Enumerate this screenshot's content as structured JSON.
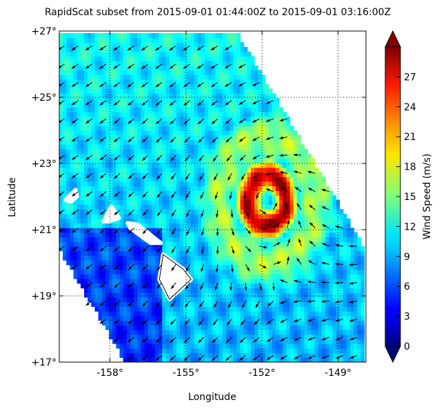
{
  "chart_data": {
    "type": "heatmap",
    "title": "RapidScat subset from 2015-09-01 01:44:00Z to 2015-09-01 03:16:00Z",
    "xlabel": "Longitude",
    "ylabel": "Latitude",
    "xlim": [
      -160.0,
      -147.9
    ],
    "ylim": [
      17,
      27
    ],
    "x_ticks": [
      {
        "value": -158,
        "label": "-158°"
      },
      {
        "value": -155,
        "label": "-155°"
      },
      {
        "value": -152,
        "label": "-152°"
      },
      {
        "value": -149,
        "label": "-149°"
      }
    ],
    "y_ticks": [
      {
        "value": 17,
        "label": "+17°"
      },
      {
        "value": 19,
        "label": "+19°"
      },
      {
        "value": 21,
        "label": "+21°"
      },
      {
        "value": 23,
        "label": "+23°"
      },
      {
        "value": 25,
        "label": "+25°"
      },
      {
        "value": 27,
        "label": "+27°"
      }
    ],
    "grid": true,
    "colorbar": {
      "label": "Wind Speed (m/s)",
      "range": [
        0,
        30
      ],
      "colormap": "jet",
      "extend": "both",
      "ticks": [
        {
          "value": 0,
          "label": "0"
        },
        {
          "value": 3,
          "label": "3"
        },
        {
          "value": 6,
          "label": "6"
        },
        {
          "value": 9,
          "label": "9"
        },
        {
          "value": 12,
          "label": "12"
        },
        {
          "value": 15,
          "label": "15"
        },
        {
          "value": 18,
          "label": "18"
        },
        {
          "value": 21,
          "label": "21"
        },
        {
          "value": 24,
          "label": "24"
        },
        {
          "value": 27,
          "label": "27"
        }
      ]
    },
    "swath_polygon": [
      [
        -160.0,
        27.0
      ],
      [
        -153.0,
        27.0
      ],
      [
        -147.9,
        20.4
      ],
      [
        -147.9,
        17.0
      ],
      [
        -157.4,
        17.0
      ],
      [
        -160.0,
        20.4
      ]
    ],
    "cyclone_center": {
      "lon": -151.8,
      "lat": 21.9
    },
    "peak_wind": 29,
    "islands": [
      {
        "name": "Kauai",
        "outline": [
          [
            -159.75,
            21.9
          ],
          [
            -159.35,
            22.2
          ],
          [
            -159.3,
            22.0
          ],
          [
            -159.55,
            21.85
          ]
        ]
      },
      {
        "name": "Oahu",
        "outline": [
          [
            -158.25,
            21.25
          ],
          [
            -157.95,
            21.7
          ],
          [
            -157.65,
            21.35
          ],
          [
            -158.05,
            21.25
          ]
        ]
      },
      {
        "name": "Molokai-Maui",
        "outline": [
          [
            -157.3,
            21.2
          ],
          [
            -156.9,
            21.15
          ],
          [
            -156.0,
            20.6
          ],
          [
            -156.4,
            20.6
          ],
          [
            -157.2,
            21.05
          ]
        ]
      },
      {
        "name": "Hawaii",
        "outline": [
          [
            -155.9,
            20.25
          ],
          [
            -155.1,
            19.8
          ],
          [
            -154.8,
            19.5
          ],
          [
            -155.65,
            18.9
          ],
          [
            -156.05,
            19.5
          ]
        ]
      }
    ]
  }
}
